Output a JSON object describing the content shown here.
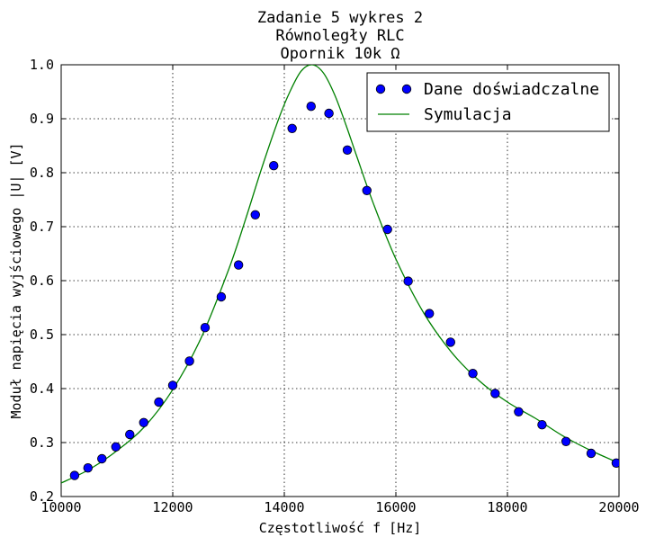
{
  "chart_data": {
    "type": "scatter",
    "title_lines": [
      "Zadanie 5 wykres 2",
      "Równoległy RLC",
      "Opornik 10k Ω"
    ],
    "xlabel": "Częstotliwość f [Hz]",
    "ylabel": "Moduł napięcia wyjściowego |U| [V]",
    "xlim": [
      10000,
      20000
    ],
    "ylim": [
      0.2,
      1.0
    ],
    "x_ticks": [
      10000,
      12000,
      14000,
      16000,
      18000,
      20000
    ],
    "x_tick_labels": [
      "10000",
      "12000",
      "14000",
      "16000",
      "18000",
      "20000"
    ],
    "y_ticks": [
      0.2,
      0.3,
      0.4,
      0.5,
      0.6,
      0.7,
      0.8,
      0.9,
      1.0
    ],
    "y_tick_labels": [
      "0.2",
      "0.3",
      "0.4",
      "0.5",
      "0.6",
      "0.7",
      "0.8",
      "0.9",
      "1.0"
    ],
    "grid": true,
    "legend_position": "top-right",
    "series": [
      {
        "name": "Dane doświadczalne",
        "kind": "markers",
        "color": "#0000ff",
        "points": [
          [
            10240,
            0.239
          ],
          [
            10480,
            0.253
          ],
          [
            10730,
            0.27
          ],
          [
            10980,
            0.292
          ],
          [
            11230,
            0.315
          ],
          [
            11480,
            0.337
          ],
          [
            11750,
            0.375
          ],
          [
            12000,
            0.406
          ],
          [
            12300,
            0.451
          ],
          [
            12580,
            0.513
          ],
          [
            12870,
            0.57
          ],
          [
            13180,
            0.629
          ],
          [
            13480,
            0.722
          ],
          [
            13810,
            0.813
          ],
          [
            14140,
            0.882
          ],
          [
            14480,
            0.923
          ],
          [
            14800,
            0.91
          ],
          [
            15130,
            0.842
          ],
          [
            15480,
            0.767
          ],
          [
            15850,
            0.695
          ],
          [
            16220,
            0.599
          ],
          [
            16600,
            0.539
          ],
          [
            16980,
            0.486
          ],
          [
            17380,
            0.428
          ],
          [
            17780,
            0.391
          ],
          [
            18200,
            0.357
          ],
          [
            18620,
            0.333
          ],
          [
            19050,
            0.302
          ],
          [
            19500,
            0.28
          ],
          [
            19950,
            0.262
          ]
        ]
      },
      {
        "name": "Symulacja",
        "kind": "line",
        "color": "#008000",
        "points": [
          [
            10000,
            0.225
          ],
          [
            10500,
            0.25
          ],
          [
            11000,
            0.285
          ],
          [
            11500,
            0.33
          ],
          [
            12000,
            0.398
          ],
          [
            12500,
            0.492
          ],
          [
            13000,
            0.62
          ],
          [
            13300,
            0.712
          ],
          [
            13600,
            0.81
          ],
          [
            13900,
            0.9
          ],
          [
            14100,
            0.95
          ],
          [
            14300,
            0.988
          ],
          [
            14500,
            1.0
          ],
          [
            14700,
            0.985
          ],
          [
            14900,
            0.945
          ],
          [
            15100,
            0.89
          ],
          [
            15300,
            0.83
          ],
          [
            15600,
            0.742
          ],
          [
            16000,
            0.64
          ],
          [
            16500,
            0.54
          ],
          [
            17000,
            0.467
          ],
          [
            17500,
            0.414
          ],
          [
            18000,
            0.375
          ],
          [
            18500,
            0.345
          ],
          [
            19000,
            0.312
          ],
          [
            19500,
            0.285
          ],
          [
            20000,
            0.262
          ]
        ]
      }
    ]
  }
}
